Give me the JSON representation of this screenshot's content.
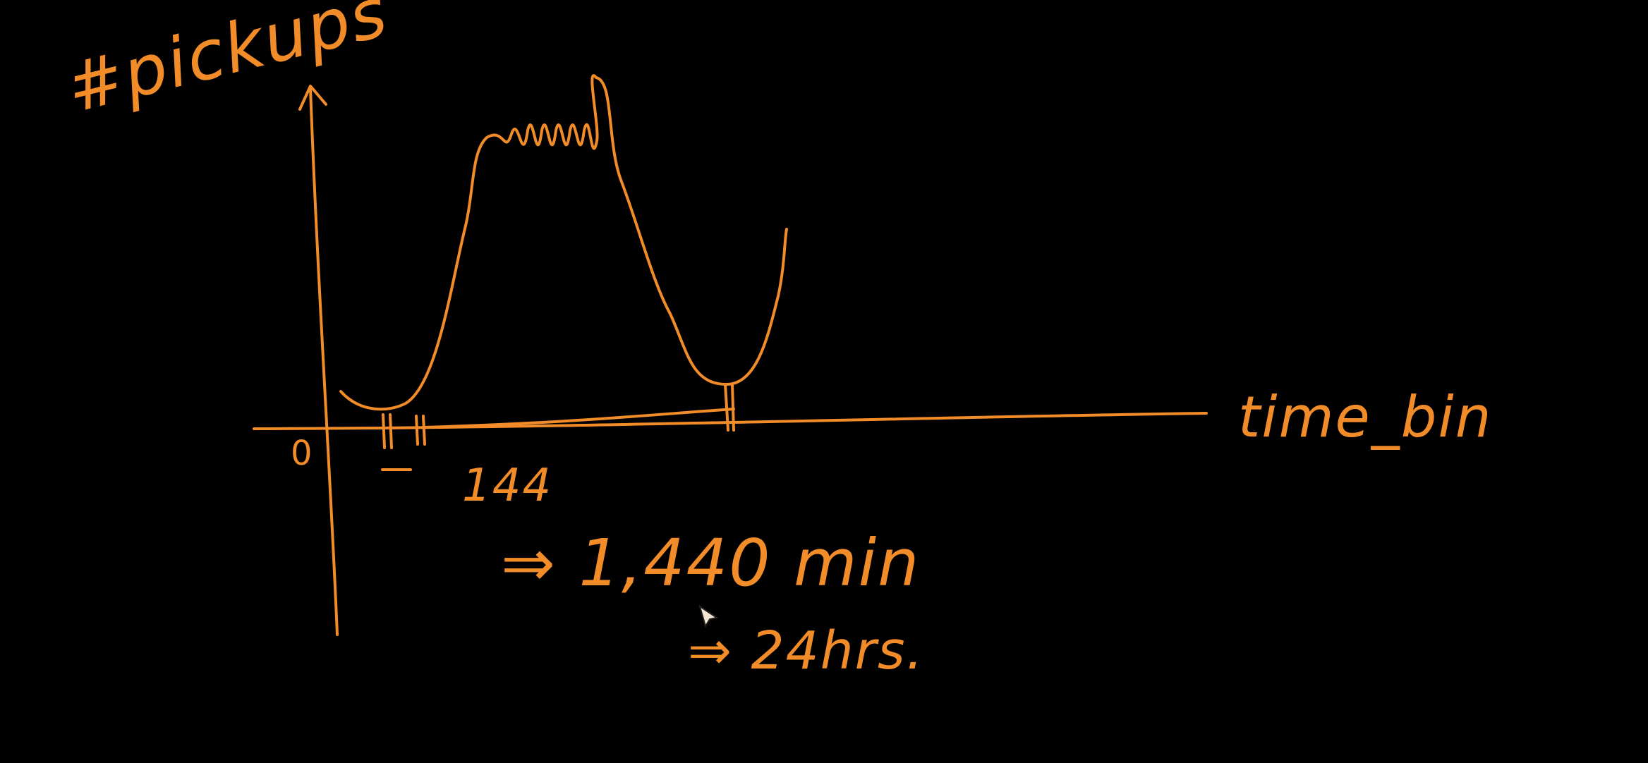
{
  "diagram": {
    "y_axis_label": "#pickups",
    "x_axis_label": "time_bin",
    "origin_label": "0",
    "tick_label": "144",
    "equation_minutes": "⇒ 1,440 min",
    "equation_hours": "⇒ 24hrs."
  },
  "style": {
    "ink_color": "#F28C28",
    "background_color": "#000000"
  },
  "icons": {
    "cursor": "pencil-cursor-icon"
  }
}
